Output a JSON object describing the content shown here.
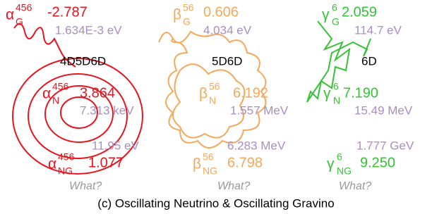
{
  "panels": [
    {
      "symbol": "α",
      "superscript": "456",
      "dimensions": "4D5D6D",
      "rows": [
        {
          "subscript": "G",
          "value": "-2.787",
          "energy": "1.634E-3 eV"
        },
        {
          "subscript": "N",
          "value": "3.864",
          "energy": "7.313 keV"
        },
        {
          "subscript": "NG",
          "value": "1.077",
          "energy": "11.95 eV"
        }
      ],
      "question": "What?"
    },
    {
      "symbol": "β",
      "superscript": "56",
      "dimensions": "5D6D",
      "rows": [
        {
          "subscript": "G",
          "value": "0.606",
          "energy": "4.034 eV"
        },
        {
          "subscript": "N",
          "value": "6.192",
          "energy": "1.557 MeV"
        },
        {
          "subscript": "NG",
          "value": "6.798",
          "energy": "6.283 MeV"
        }
      ],
      "question": "What?"
    },
    {
      "symbol": "γ",
      "superscript": "6",
      "dimensions": "6D",
      "rows": [
        {
          "subscript": "G",
          "value": "2.059",
          "energy": "114.7 eV"
        },
        {
          "subscript": "N",
          "value": "7.190",
          "energy": "15.49 MeV"
        },
        {
          "subscript": "NG",
          "value": "9.250",
          "energy": "1.777 GeV"
        }
      ],
      "question": "What?"
    }
  ],
  "caption": "(c) Oscillating Neutrino & Oscillating Gravino"
}
